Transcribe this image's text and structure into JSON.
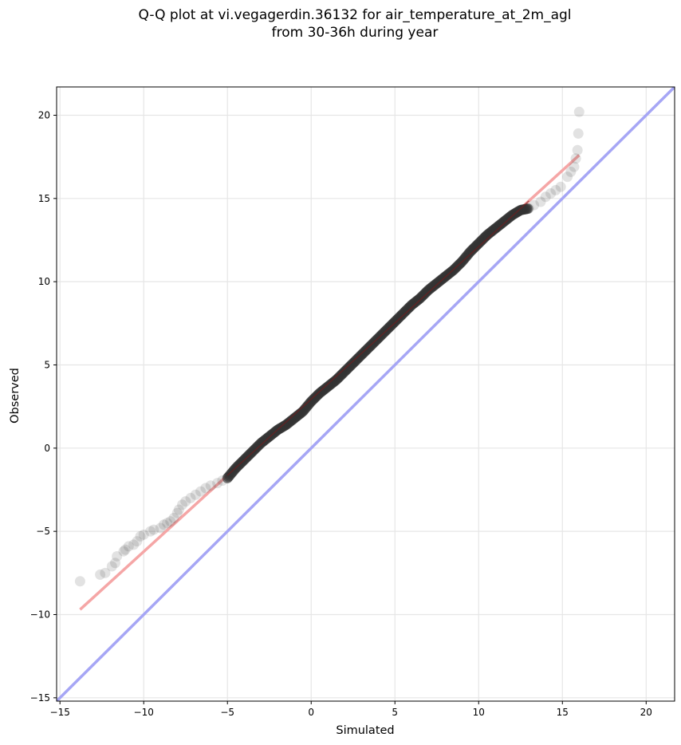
{
  "chart_data": {
    "type": "scatter",
    "title_line1": "Q-Q plot at vi.vegagerdin.36132 for air_temperature_at_2m_agl",
    "title_line2": "from 30-36h during year",
    "xlabel": "Simulated",
    "ylabel": "Observed",
    "xlim": [
      -15.2,
      21.7
    ],
    "ylim": [
      -15.2,
      21.7
    ],
    "xticks": [
      -15,
      -10,
      -5,
      0,
      5,
      10,
      15,
      20
    ],
    "yticks": [
      -15,
      -10,
      -5,
      0,
      5,
      10,
      15,
      20
    ],
    "xtick_labels": [
      "−15",
      "−10",
      "−5",
      "0",
      "5",
      "10",
      "15",
      "20"
    ],
    "ytick_labels": [
      "−15",
      "−10",
      "−5",
      "0",
      "5",
      "10",
      "15",
      "20"
    ],
    "grid": true,
    "reference_line": {
      "color": "#a6a6f5",
      "from": [
        -15.2,
        -15.2
      ],
      "to": [
        21.7,
        21.7
      ]
    },
    "fit_line": {
      "color": "#f5a6a6",
      "from": [
        -13.8,
        -9.7
      ],
      "to": [
        16.0,
        17.6
      ]
    },
    "points_color": "#333333",
    "sparse_points": [
      [
        -13.8,
        -8.0
      ],
      [
        -12.6,
        -7.6
      ],
      [
        -12.3,
        -7.5
      ],
      [
        -11.9,
        -7.1
      ],
      [
        -11.7,
        -6.9
      ],
      [
        -11.6,
        -6.5
      ],
      [
        -11.2,
        -6.2
      ],
      [
        -11.1,
        -6.1
      ],
      [
        -10.9,
        -5.9
      ],
      [
        -10.6,
        -5.8
      ],
      [
        -10.4,
        -5.6
      ],
      [
        -10.2,
        -5.3
      ],
      [
        -10.0,
        -5.2
      ],
      [
        -9.6,
        -5.0
      ],
      [
        -9.4,
        -4.9
      ],
      [
        -9.0,
        -4.8
      ],
      [
        -8.8,
        -4.6
      ],
      [
        -8.6,
        -4.5
      ],
      [
        -8.4,
        -4.4
      ],
      [
        -8.2,
        -4.2
      ],
      [
        -8.0,
        -3.9
      ],
      [
        -7.9,
        -3.7
      ],
      [
        -7.7,
        -3.4
      ],
      [
        -7.5,
        -3.2
      ],
      [
        -7.2,
        -3.0
      ],
      [
        -6.9,
        -2.8
      ],
      [
        -6.6,
        -2.6
      ],
      [
        -6.3,
        -2.4
      ],
      [
        -6.0,
        -2.25
      ],
      [
        -5.6,
        -2.1
      ],
      [
        -5.3,
        -1.95
      ],
      [
        -5.0,
        -1.8
      ],
      [
        13.0,
        14.4
      ],
      [
        13.3,
        14.6
      ],
      [
        13.7,
        14.8
      ],
      [
        14.0,
        15.1
      ],
      [
        14.3,
        15.3
      ],
      [
        14.6,
        15.5
      ],
      [
        14.9,
        15.7
      ],
      [
        15.3,
        16.3
      ],
      [
        15.5,
        16.6
      ],
      [
        15.7,
        16.9
      ],
      [
        15.8,
        17.4
      ],
      [
        15.9,
        17.9
      ],
      [
        15.95,
        18.9
      ],
      [
        16.0,
        20.2
      ]
    ],
    "dense_curve": [
      [
        -5.0,
        -1.8
      ],
      [
        -4.5,
        -1.2
      ],
      [
        -4.0,
        -0.7
      ],
      [
        -3.5,
        -0.2
      ],
      [
        -3.0,
        0.3
      ],
      [
        -2.5,
        0.7
      ],
      [
        -2.0,
        1.1
      ],
      [
        -1.5,
        1.4
      ],
      [
        -1.0,
        1.8
      ],
      [
        -0.5,
        2.2
      ],
      [
        0.0,
        2.8
      ],
      [
        0.5,
        3.3
      ],
      [
        1.0,
        3.7
      ],
      [
        1.5,
        4.1
      ],
      [
        2.0,
        4.6
      ],
      [
        2.5,
        5.1
      ],
      [
        3.0,
        5.6
      ],
      [
        3.5,
        6.1
      ],
      [
        4.0,
        6.6
      ],
      [
        4.5,
        7.1
      ],
      [
        5.0,
        7.6
      ],
      [
        5.5,
        8.1
      ],
      [
        6.0,
        8.6
      ],
      [
        6.5,
        9.0
      ],
      [
        7.0,
        9.5
      ],
      [
        7.5,
        9.9
      ],
      [
        8.0,
        10.3
      ],
      [
        8.5,
        10.7
      ],
      [
        9.0,
        11.2
      ],
      [
        9.5,
        11.8
      ],
      [
        10.0,
        12.3
      ],
      [
        10.5,
        12.8
      ],
      [
        11.0,
        13.2
      ],
      [
        11.5,
        13.6
      ],
      [
        12.0,
        14.0
      ],
      [
        12.5,
        14.3
      ],
      [
        13.0,
        14.4
      ]
    ]
  }
}
